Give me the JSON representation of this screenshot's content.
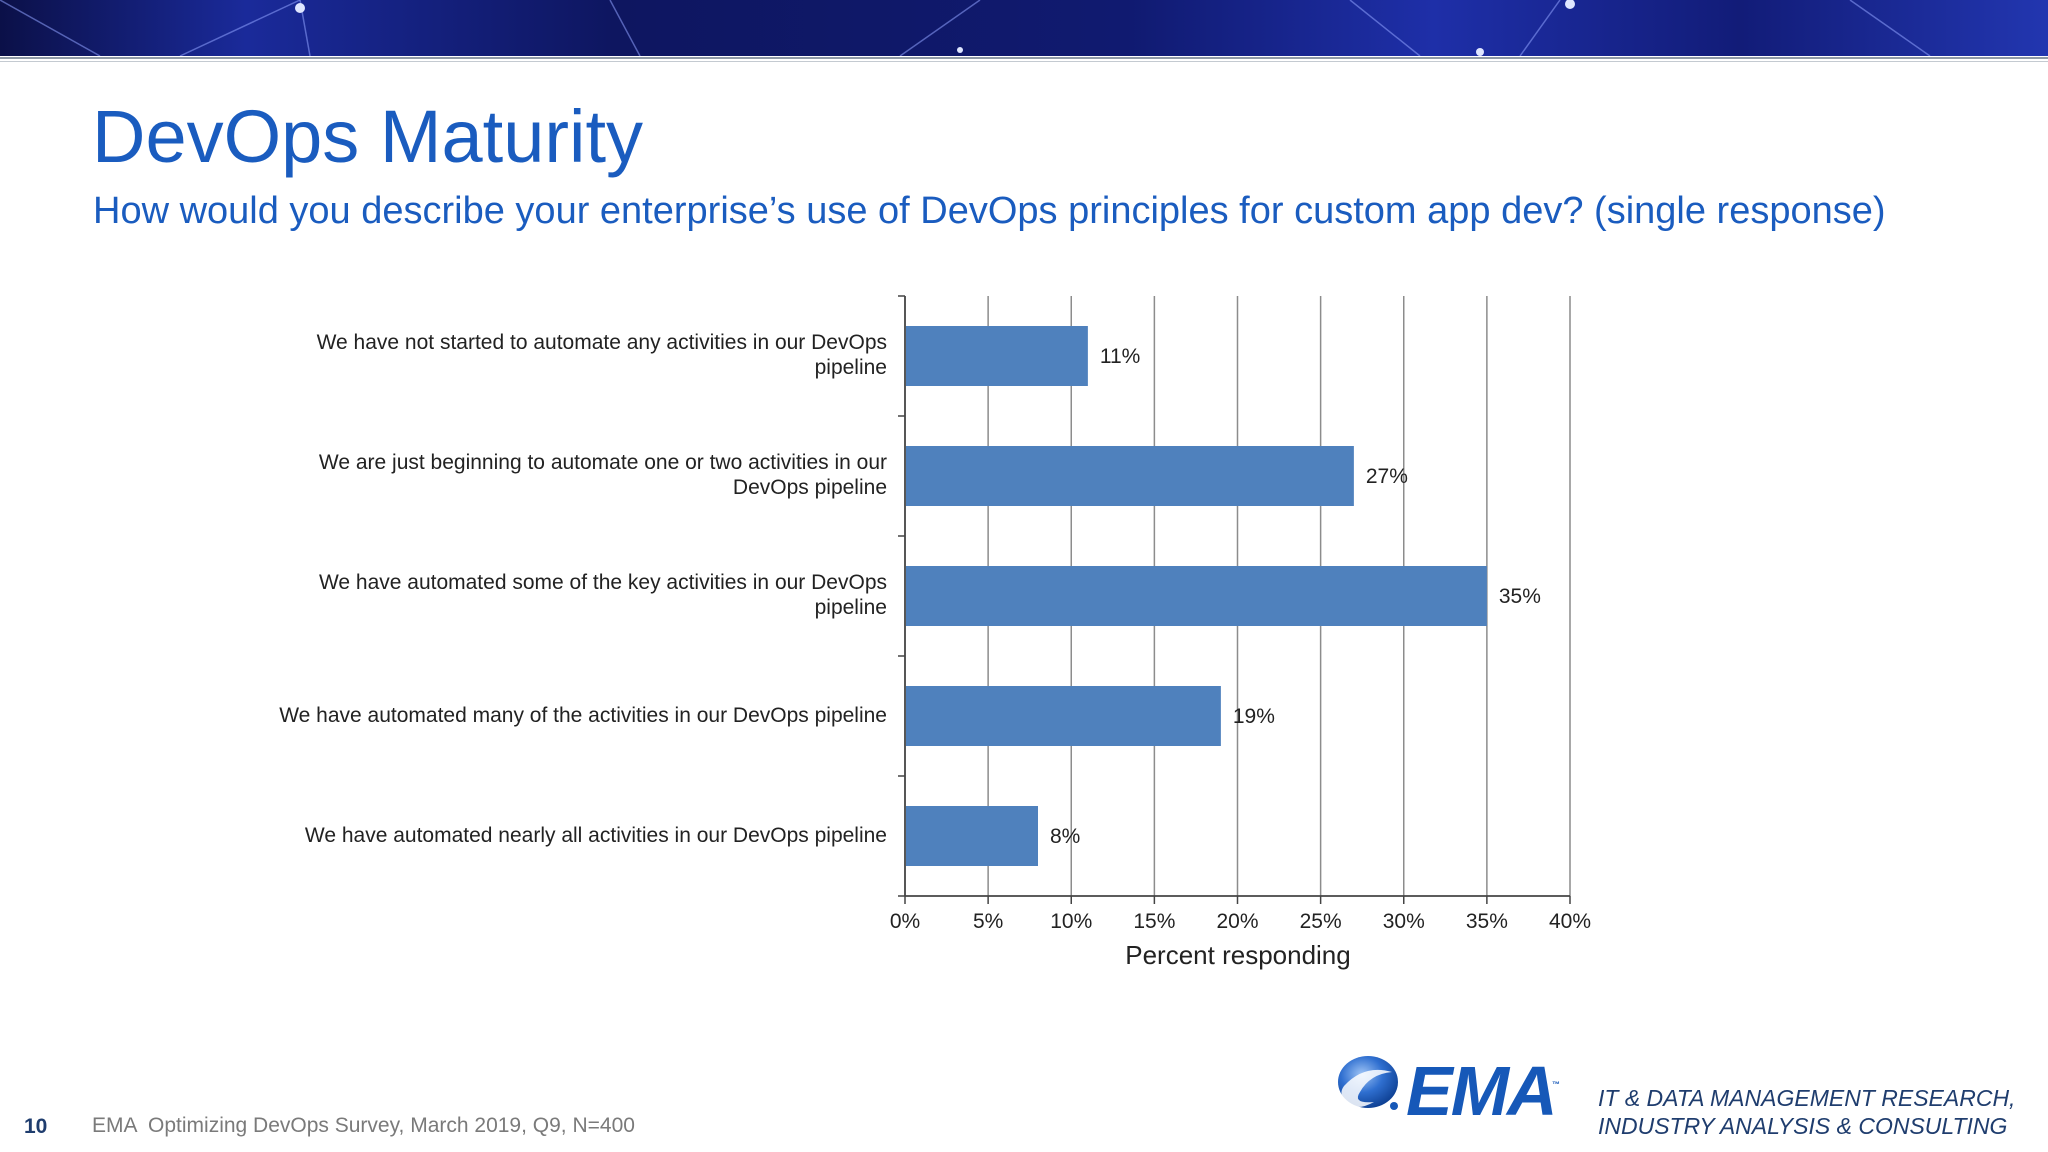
{
  "slide": {
    "title": "DevOps Maturity",
    "subtitle": "How would you describe your enterprise’s use of DevOps principles for custom app dev? (single response)",
    "page_number": "10",
    "source": "EMA  Optimizing DevOps Survey, March 2019, Q9, N=400"
  },
  "branding": {
    "logo_text": "EMA",
    "logo_tm": "™",
    "tagline_line1": "IT & DATA MANAGEMENT RESEARCH,",
    "tagline_line2": "INDUSTRY ANALYSIS & CONSULTING",
    "logo_icon": "ema-swoosh-icon"
  },
  "colors": {
    "title": "#1a5cbf",
    "bar": "#4f81bd",
    "banner_dark": "#0d1450",
    "banner_light": "#2a3bb5"
  },
  "chart_data": {
    "type": "bar",
    "orientation": "horizontal",
    "categories": [
      "We have not started to automate any activities in our DevOps pipeline",
      "We are just beginning to automate one or two activities in our DevOps pipeline",
      "We have automated some of the key activities in our DevOps pipeline",
      "We have automated many of the activities in our DevOps pipeline",
      "We have automated nearly all activities in our DevOps pipeline"
    ],
    "values": [
      11,
      27,
      35,
      19,
      8
    ],
    "data_labels": [
      "11%",
      "27%",
      "35%",
      "19%",
      "8%"
    ],
    "xlabel": "Percent responding",
    "xlim": [
      0,
      40
    ],
    "x_ticks": [
      "0%",
      "5%",
      "10%",
      "15%",
      "20%",
      "25%",
      "30%",
      "35%",
      "40%"
    ],
    "grid": "vertical",
    "legend": "none"
  }
}
